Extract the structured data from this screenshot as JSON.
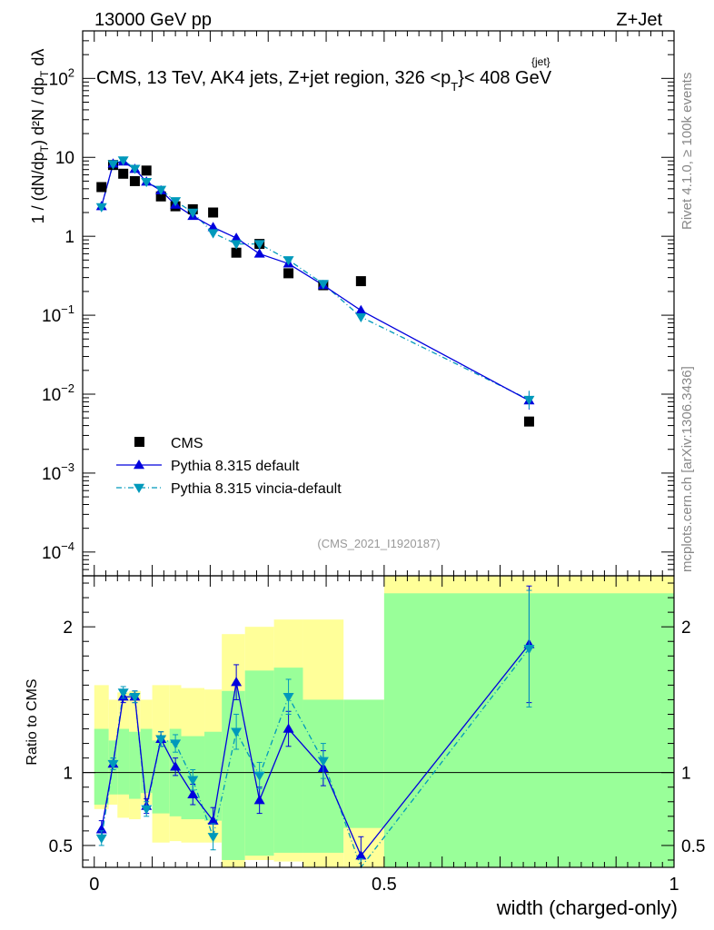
{
  "header": {
    "left": "13000 GeV pp",
    "right": "Z+Jet"
  },
  "plot_title": "CMS, 13 TeV, AK4 jets, Z+jet region, 326 <p",
  "plot_title_sup": "{jet}",
  "plot_title_sub": "T",
  "plot_title_tail": "}< 408 GeV",
  "ylabel_main": "1/(dN/dpT) d²N/(dpT dλ)",
  "analysis_id": "(CMS_2021_I1920187)",
  "side_text_top": "Rivet 4.1.0, ≥ 100k events",
  "side_text_bottom": "mcplots.cern.ch [arXiv:1306.3436]",
  "xlabel": "width (charged-only)",
  "ratio_ylabel": "Ratio to CMS",
  "legend": [
    {
      "label": "CMS",
      "color": "#000000",
      "marker": "square"
    },
    {
      "label": "Pythia 8.315 default",
      "color": "#0000dd",
      "marker": "triangle-up"
    },
    {
      "label": "Pythia 8.315 vincia-default",
      "color": "#0099bb",
      "marker": "triangle-down"
    }
  ],
  "chart_data": {
    "type": "scatter",
    "xlim": [
      -0.02,
      1.0
    ],
    "x_ticks": [
      0,
      0.5,
      1
    ],
    "x_tick_labels": [
      "0",
      "0.5",
      "1"
    ],
    "main": {
      "yscale": "log",
      "ylim": [
        5e-05,
        400
      ],
      "y_ticks": [
        0.0001,
        0.001,
        0.01,
        0.1,
        1,
        10,
        100
      ],
      "y_tick_labels": [
        [
          "10",
          "−4"
        ],
        [
          "10",
          "−3"
        ],
        [
          "10",
          "−2"
        ],
        [
          "10",
          "−1"
        ],
        [
          "1",
          ""
        ],
        [
          "10",
          ""
        ],
        [
          "10",
          "2"
        ]
      ],
      "x": [
        0.0125,
        0.0325,
        0.05,
        0.07,
        0.09,
        0.115,
        0.14,
        0.17,
        0.205,
        0.245,
        0.285,
        0.335,
        0.395,
        0.46,
        0.75
      ],
      "series": [
        {
          "name": "CMS",
          "values": [
            4.2,
            8.0,
            6.2,
            5.0,
            6.8,
            3.2,
            2.4,
            2.2,
            2.0,
            0.62,
            0.8,
            0.34,
            0.24,
            0.27,
            0.0045
          ]
        },
        {
          "name": "Pythia 8.315 default",
          "values": [
            2.4,
            8.3,
            8.8,
            7.1,
            4.9,
            3.8,
            2.5,
            1.8,
            1.3,
            0.95,
            0.6,
            0.45,
            0.24,
            0.115,
            0.0083
          ]
        },
        {
          "name": "Pythia 8.315 vincia-default",
          "values": [
            2.35,
            8.2,
            9.2,
            7.2,
            4.9,
            3.9,
            2.8,
            2.0,
            1.1,
            0.8,
            0.8,
            0.5,
            0.25,
            0.095,
            0.0085
          ]
        }
      ]
    },
    "ratio": {
      "ylim": [
        0.35,
        2.35
      ],
      "y_ticks": [
        0.5,
        1,
        2
      ],
      "y_tick_labels": [
        "0.5",
        "1",
        "2"
      ],
      "bins": [
        [
          0.0,
          0.025
        ],
        [
          0.025,
          0.04
        ],
        [
          0.04,
          0.06
        ],
        [
          0.06,
          0.08
        ],
        [
          0.08,
          0.1
        ],
        [
          0.1,
          0.13
        ],
        [
          0.13,
          0.15
        ],
        [
          0.15,
          0.19
        ],
        [
          0.19,
          0.22
        ],
        [
          0.22,
          0.26
        ],
        [
          0.26,
          0.31
        ],
        [
          0.31,
          0.36
        ],
        [
          0.36,
          0.43
        ],
        [
          0.43,
          0.5
        ],
        [
          0.5,
          1.0
        ]
      ],
      "band_yellow": [
        [
          0.75,
          1.6
        ],
        [
          0.78,
          1.5
        ],
        [
          0.69,
          1.55
        ],
        [
          0.68,
          1.56
        ],
        [
          0.78,
          1.5
        ],
        [
          0.52,
          1.6
        ],
        [
          0.53,
          1.6
        ],
        [
          0.52,
          1.58
        ],
        [
          0.52,
          1.57
        ],
        [
          0.35,
          1.95
        ],
        [
          0.4,
          2.0
        ],
        [
          0.39,
          2.05
        ],
        [
          0.35,
          2.05
        ],
        [
          0.35,
          1.5
        ],
        [
          0.35,
          2.4
        ]
      ],
      "band_green": [
        [
          0.78,
          1.3
        ],
        [
          0.85,
          1.22
        ],
        [
          0.85,
          1.3
        ],
        [
          0.82,
          1.28
        ],
        [
          0.86,
          1.3
        ],
        [
          0.72,
          1.22
        ],
        [
          0.7,
          1.3
        ],
        [
          0.68,
          1.25
        ],
        [
          0.67,
          1.28
        ],
        [
          0.4,
          1.56
        ],
        [
          0.43,
          1.7
        ],
        [
          0.45,
          1.72
        ],
        [
          0.45,
          1.5
        ],
        [
          0.62,
          1.5
        ],
        [
          0.35,
          2.23
        ]
      ],
      "series": [
        {
          "name": "Pythia 8.315 default",
          "values": [
            0.61,
            1.06,
            1.52,
            1.52,
            0.77,
            1.23,
            1.04,
            0.85,
            0.67,
            1.62,
            0.81,
            1.3,
            1.03,
            0.43,
            1.88
          ],
          "errors": [
            0.06,
            0.04,
            0.04,
            0.04,
            0.05,
            0.05,
            0.06,
            0.07,
            0.09,
            0.12,
            0.09,
            0.12,
            0.12,
            0.13,
            0.4
          ]
        },
        {
          "name": "Pythia 8.315 vincia-default",
          "values": [
            0.55,
            1.06,
            1.55,
            1.52,
            0.75,
            1.23,
            1.2,
            0.95,
            0.56,
            1.28,
            0.98,
            1.52,
            1.08,
            0.28,
            1.85
          ],
          "errors": [
            0.05,
            0.04,
            0.04,
            0.04,
            0.05,
            0.05,
            0.06,
            0.07,
            0.09,
            0.12,
            0.09,
            0.12,
            0.12,
            0.13,
            0.4
          ]
        }
      ]
    }
  }
}
